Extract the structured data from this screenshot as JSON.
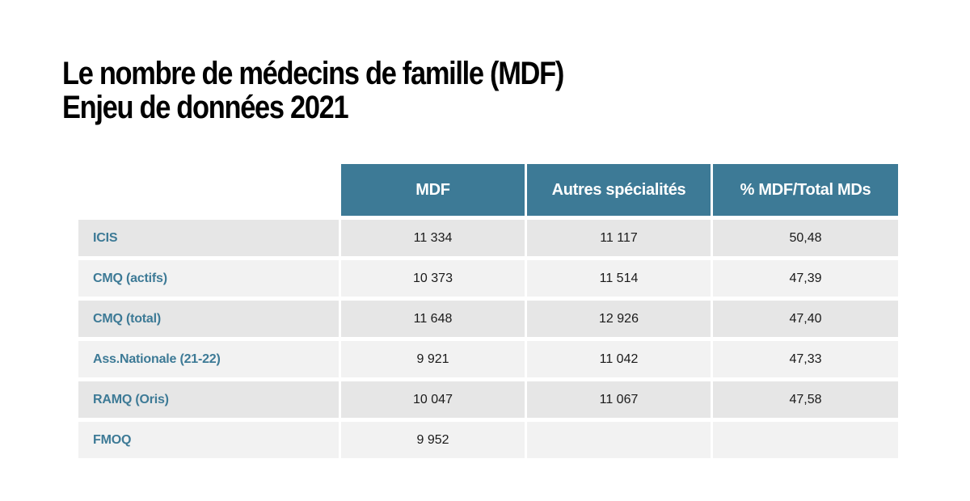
{
  "title": {
    "line1": "Le nombre de médecins de famille (MDF)",
    "line2": "Enjeu de données 2021"
  },
  "table": {
    "headers": [
      "",
      "MDF",
      "Autres spécialités",
      "% MDF/Total MDs"
    ],
    "rows": [
      {
        "label": "ICIS",
        "mdf": "11 334",
        "autres": "11 117",
        "pct": "50,48"
      },
      {
        "label": "CMQ (actifs)",
        "mdf": "10 373",
        "autres": "11 514",
        "pct": "47,39"
      },
      {
        "label": "CMQ (total)",
        "mdf": "11 648",
        "autres": "12 926",
        "pct": "47,40"
      },
      {
        "label": "Ass.Nationale (21-22)",
        "mdf": "9 921",
        "autres": "11 042",
        "pct": "47,33"
      },
      {
        "label": "RAMQ (Oris)",
        "mdf": "10 047",
        "autres": "11 067",
        "pct": "47,58"
      },
      {
        "label": "FMOQ",
        "mdf": "9 952",
        "autres": "",
        "pct": ""
      }
    ]
  },
  "colors": {
    "header_bg": "#3d7a96",
    "row_label": "#3d7a96",
    "row_bg_dark": "#e6e6e6",
    "row_bg_light": "#f2f2f2"
  }
}
